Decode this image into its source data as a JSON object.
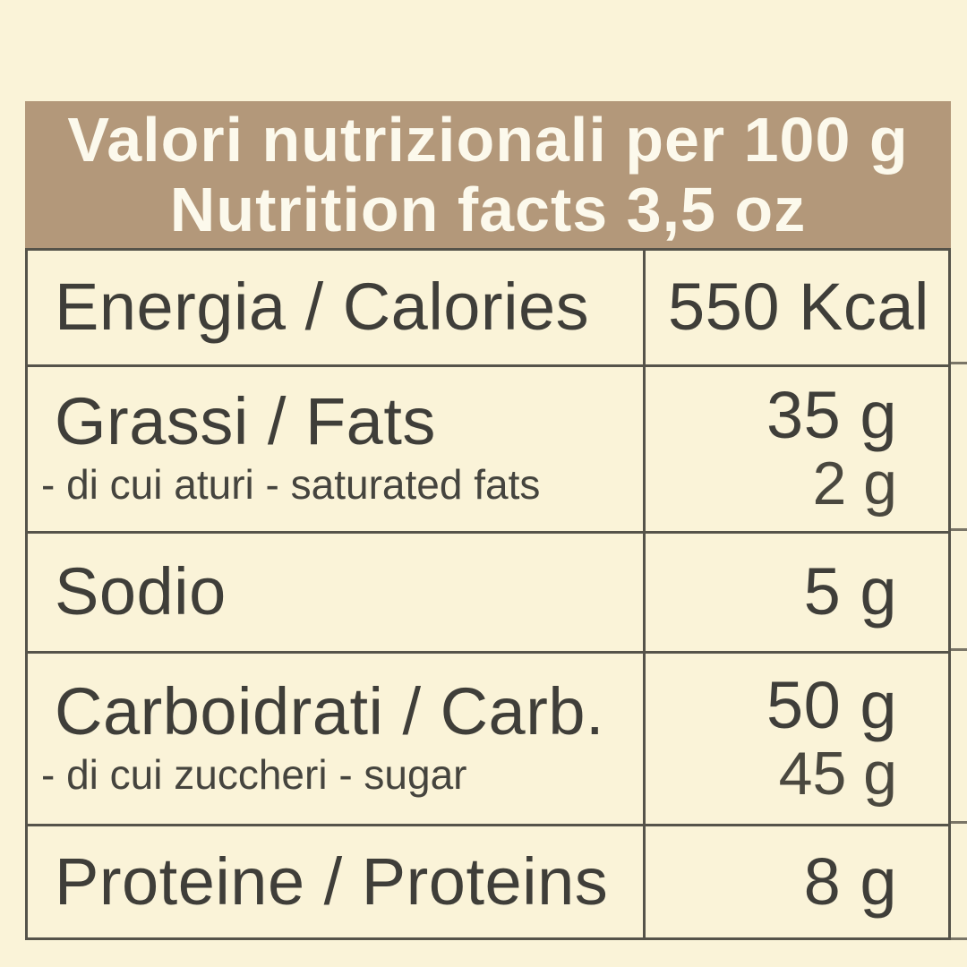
{
  "header": {
    "title_line1": "Valori nutrizionali per 100 g",
    "title_line2": "Nutrition facts 3,5 oz"
  },
  "rows": [
    {
      "label": "Energia / Calories",
      "value": "550 Kcal"
    },
    {
      "label": "Grassi / Fats",
      "sublabel": "- di cui aturi - saturated fats",
      "value": "35 g",
      "subvalue": "2 g"
    },
    {
      "label": "Sodio",
      "value": "5 g"
    },
    {
      "label": "Carboidrati / Carb.",
      "sublabel": "- di cui zuccheri - sugar",
      "value": "50 g",
      "subvalue": "45 g"
    },
    {
      "label": "Proteine / Proteins",
      "value": "8 g"
    }
  ],
  "colors": {
    "background": "#faf3d8",
    "header_bg": "#b3987a",
    "header_text": "#fcf9ec",
    "grid_line": "#55534a",
    "text": "#3f3e39"
  }
}
